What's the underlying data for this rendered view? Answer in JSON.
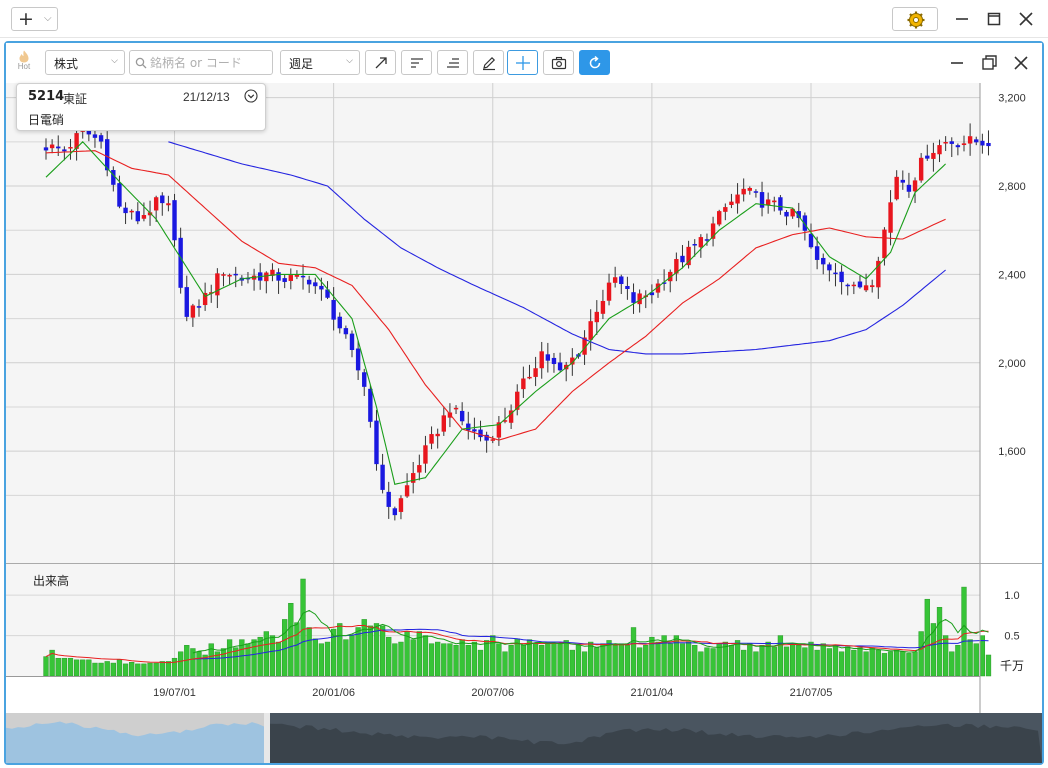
{
  "toolbar": {
    "hot_label": "Hot",
    "market_select": "株式",
    "search_placeholder": "銘柄名 or コード",
    "period_select": "週足"
  },
  "info": {
    "code": "5214",
    "market": "東証",
    "date": "21/12/13",
    "name": "日電硝"
  },
  "colors": {
    "up": "#e8161e",
    "down": "#1a18e0",
    "ma_short": "#1a9e1a",
    "ma_mid": "#e82020",
    "ma_long": "#2424e0",
    "volume": "#37c437",
    "accent": "#2e97e8"
  },
  "chart_data": [
    {
      "type": "candlestick",
      "y_ticks": [
        "3,200",
        "2,800",
        "2,400",
        "2,000",
        "1,600"
      ],
      "y_tick_values": [
        3200,
        2800,
        2400,
        2000,
        1600
      ],
      "ylim": [
        1130,
        3230
      ],
      "x_tick_labels": [
        "19/07/01",
        "20/01/06",
        "20/07/06",
        "21/01/04",
        "21/07/05"
      ],
      "x_tick_index": [
        21,
        47,
        73,
        99,
        125
      ],
      "anchors": [
        [
          0,
          2980
        ],
        [
          3,
          2960
        ],
        [
          6,
          3050
        ],
        [
          9,
          3000
        ],
        [
          12,
          2700
        ],
        [
          15,
          2650
        ],
        [
          18,
          2720
        ],
        [
          20,
          2700
        ],
        [
          23,
          2200
        ],
        [
          26,
          2300
        ],
        [
          29,
          2420
        ],
        [
          32,
          2380
        ],
        [
          36,
          2400
        ],
        [
          39,
          2380
        ],
        [
          43,
          2380
        ],
        [
          46,
          2280
        ],
        [
          49,
          2100
        ],
        [
          52,
          1900
        ],
        [
          55,
          1400
        ],
        [
          57,
          1320
        ],
        [
          60,
          1500
        ],
        [
          63,
          1650
        ],
        [
          66,
          1800
        ],
        [
          69,
          1700
        ],
        [
          72,
          1650
        ],
        [
          75,
          1750
        ],
        [
          78,
          1900
        ],
        [
          81,
          2050
        ],
        [
          84,
          1950
        ],
        [
          87,
          2050
        ],
        [
          90,
          2250
        ],
        [
          93,
          2380
        ],
        [
          96,
          2280
        ],
        [
          99,
          2320
        ],
        [
          102,
          2420
        ],
        [
          105,
          2500
        ],
        [
          108,
          2580
        ],
        [
          111,
          2700
        ],
        [
          114,
          2780
        ],
        [
          117,
          2730
        ],
        [
          120,
          2700
        ],
        [
          123,
          2650
        ],
        [
          126,
          2450
        ],
        [
          129,
          2420
        ],
        [
          132,
          2330
        ],
        [
          135,
          2380
        ],
        [
          137,
          2600
        ],
        [
          139,
          2850
        ],
        [
          141,
          2800
        ],
        [
          144,
          2950
        ],
        [
          147,
          3000
        ]
      ],
      "ma_short": [
        [
          0,
          2840
        ],
        [
          6,
          3000
        ],
        [
          12,
          2820
        ],
        [
          18,
          2650
        ],
        [
          26,
          2300
        ],
        [
          32,
          2380
        ],
        [
          38,
          2400
        ],
        [
          44,
          2400
        ],
        [
          50,
          2200
        ],
        [
          54,
          1800
        ],
        [
          57,
          1450
        ],
        [
          62,
          1480
        ],
        [
          68,
          1700
        ],
        [
          74,
          1720
        ],
        [
          80,
          1870
        ],
        [
          86,
          2000
        ],
        [
          92,
          2200
        ],
        [
          98,
          2300
        ],
        [
          104,
          2430
        ],
        [
          110,
          2600
        ],
        [
          116,
          2720
        ],
        [
          122,
          2700
        ],
        [
          128,
          2480
        ],
        [
          134,
          2380
        ],
        [
          138,
          2500
        ],
        [
          142,
          2770
        ],
        [
          147,
          2900
        ]
      ],
      "ma_mid": [
        [
          0,
          2950
        ],
        [
          8,
          2960
        ],
        [
          14,
          2880
        ],
        [
          20,
          2850
        ],
        [
          26,
          2700
        ],
        [
          32,
          2550
        ],
        [
          38,
          2450
        ],
        [
          44,
          2430
        ],
        [
          50,
          2350
        ],
        [
          56,
          2150
        ],
        [
          62,
          1900
        ],
        [
          68,
          1700
        ],
        [
          74,
          1650
        ],
        [
          80,
          1700
        ],
        [
          86,
          1870
        ],
        [
          92,
          2000
        ],
        [
          98,
          2120
        ],
        [
          104,
          2270
        ],
        [
          110,
          2380
        ],
        [
          116,
          2520
        ],
        [
          122,
          2580
        ],
        [
          128,
          2610
        ],
        [
          134,
          2570
        ],
        [
          140,
          2560
        ],
        [
          147,
          2650
        ]
      ],
      "ma_long": [
        [
          20,
          3000
        ],
        [
          26,
          2950
        ],
        [
          32,
          2900
        ],
        [
          40,
          2850
        ],
        [
          46,
          2800
        ],
        [
          52,
          2650
        ],
        [
          58,
          2520
        ],
        [
          64,
          2430
        ],
        [
          70,
          2350
        ],
        [
          78,
          2250
        ],
        [
          86,
          2130
        ],
        [
          92,
          2060
        ],
        [
          98,
          2040
        ],
        [
          104,
          2040
        ],
        [
          110,
          2050
        ],
        [
          116,
          2060
        ],
        [
          122,
          2080
        ],
        [
          128,
          2100
        ],
        [
          134,
          2150
        ],
        [
          140,
          2260
        ],
        [
          147,
          2420
        ]
      ]
    },
    {
      "type": "bar",
      "title": "出来高",
      "unit": "千万",
      "y_ticks": [
        "1.0",
        "0.5"
      ],
      "y_tick_values": [
        1.0,
        0.5
      ],
      "ylim": [
        0,
        1.2
      ],
      "values": [
        0.24,
        0.32,
        0.22,
        0.22,
        0.22,
        0.2,
        0.2,
        0.2,
        0.16,
        0.16,
        0.18,
        0.16,
        0.2,
        0.15,
        0.17,
        0.15,
        0.15,
        0.16,
        0.16,
        0.18,
        0.18,
        0.22,
        0.3,
        0.38,
        0.34,
        0.3,
        0.26,
        0.4,
        0.3,
        0.34,
        0.45,
        0.35,
        0.45,
        0.4,
        0.45,
        0.48,
        0.55,
        0.5,
        0.42,
        0.7,
        0.9,
        0.66,
        1.2,
        0.6,
        0.46,
        0.4,
        0.42,
        0.58,
        0.65,
        0.45,
        0.5,
        0.6,
        0.7,
        0.62,
        0.65,
        0.62,
        0.48,
        0.4,
        0.42,
        0.55,
        0.45,
        0.55,
        0.5,
        0.4,
        0.42,
        0.4,
        0.4,
        0.38,
        0.45,
        0.38,
        0.42,
        0.32,
        0.44,
        0.5,
        0.4,
        0.3,
        0.38,
        0.46,
        0.38,
        0.45,
        0.4,
        0.38,
        0.42,
        0.4,
        0.4,
        0.44,
        0.32,
        0.38,
        0.3,
        0.42,
        0.35,
        0.4,
        0.44,
        0.38,
        0.4,
        0.38,
        0.6,
        0.35,
        0.38,
        0.48,
        0.42,
        0.5,
        0.4,
        0.5,
        0.4,
        0.42,
        0.38,
        0.3,
        0.35,
        0.34,
        0.4,
        0.42,
        0.38,
        0.44,
        0.32,
        0.4,
        0.3,
        0.38,
        0.42,
        0.36,
        0.5,
        0.36,
        0.4,
        0.38,
        0.35,
        0.42,
        0.32,
        0.4,
        0.34,
        0.38,
        0.3,
        0.36,
        0.32,
        0.35,
        0.3,
        0.35,
        0.32,
        0.28,
        0.3,
        0.32,
        0.3,
        0.28,
        0.3,
        0.55,
        0.95,
        0.65,
        0.85,
        0.5,
        0.3,
        0.38,
        1.1,
        0.45,
        0.4,
        0.5,
        0.26
      ]
    }
  ]
}
